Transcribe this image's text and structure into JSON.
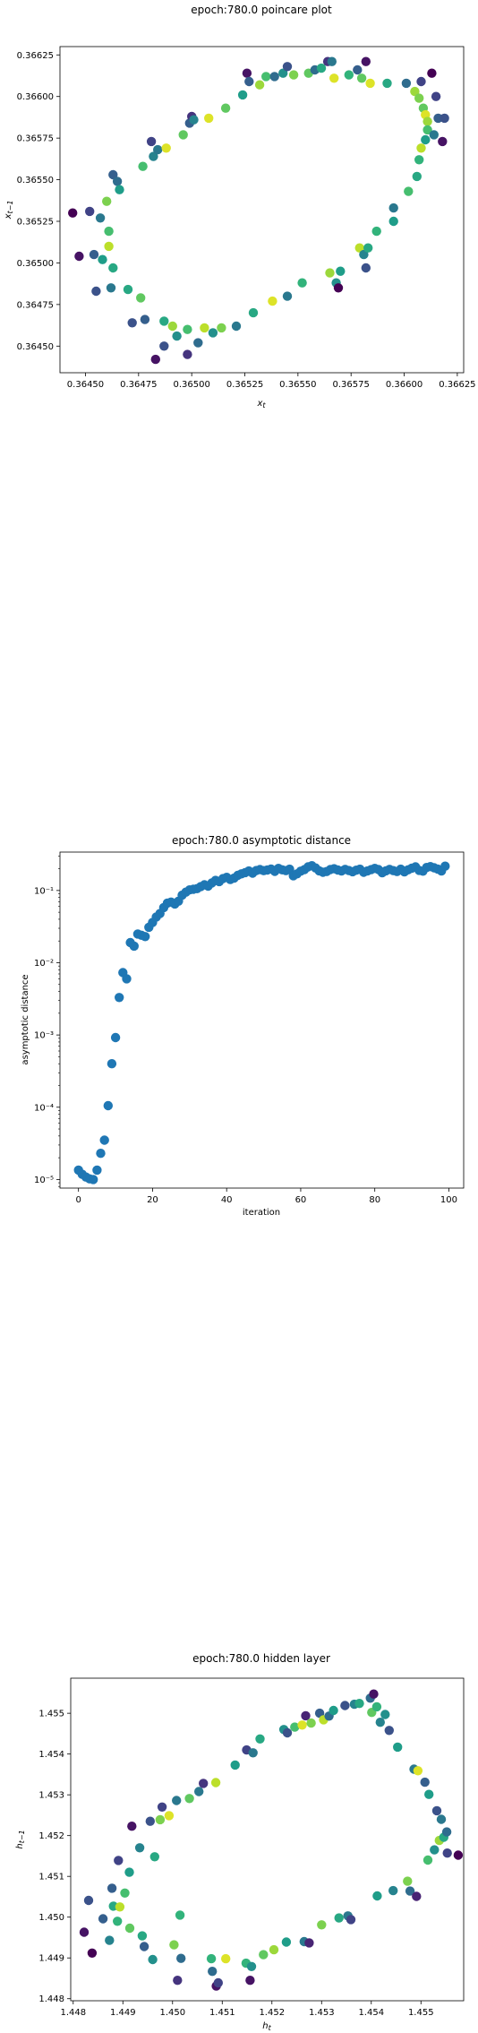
{
  "chart_data": [
    {
      "type": "scatter",
      "title": "epoch:780.0 poincare plot",
      "xlabel": "x_t",
      "ylabel": "x_{t-1}",
      "xlim": [
        0.36438,
        0.36628
      ],
      "ylim": [
        0.36434,
        0.3663
      ],
      "xticks": [
        0.3645,
        0.36475,
        0.365,
        0.36525,
        0.3655,
        0.36575,
        0.366,
        0.36625
      ],
      "xtick_labels": [
        "0.36450",
        "0.36475",
        "0.36500",
        "0.36525",
        "0.36550",
        "0.36575",
        "0.36600",
        "0.36625"
      ],
      "yticks": [
        0.3645,
        0.36475,
        0.365,
        0.36525,
        0.3655,
        0.36575,
        0.366,
        0.36625
      ],
      "ytick_labels": [
        "0.36450",
        "0.36475",
        "0.36500",
        "0.36525",
        "0.36550",
        "0.36575",
        "0.36600",
        "0.36625"
      ],
      "colormap": "viridis",
      "points": [
        [
          0.36444,
          0.3653,
          0.0
        ],
        [
          0.36447,
          0.36504,
          0.05
        ],
        [
          0.36452,
          0.36531,
          0.2
        ],
        [
          0.36454,
          0.36505,
          0.3
        ],
        [
          0.36455,
          0.36483,
          0.25
        ],
        [
          0.36457,
          0.36527,
          0.4
        ],
        [
          0.36458,
          0.36502,
          0.55
        ],
        [
          0.3646,
          0.36537,
          0.8
        ],
        [
          0.36461,
          0.36519,
          0.7
        ],
        [
          0.36461,
          0.3651,
          0.9
        ],
        [
          0.36462,
          0.36485,
          0.4
        ],
        [
          0.36463,
          0.36553,
          0.3
        ],
        [
          0.36463,
          0.36497,
          0.6
        ],
        [
          0.36465,
          0.36549,
          0.35
        ],
        [
          0.36466,
          0.36544,
          0.55
        ],
        [
          0.3647,
          0.36484,
          0.6
        ],
        [
          0.36472,
          0.36464,
          0.25
        ],
        [
          0.36476,
          0.36479,
          0.75
        ],
        [
          0.36477,
          0.36558,
          0.7
        ],
        [
          0.36478,
          0.36466,
          0.3
        ],
        [
          0.36481,
          0.36573,
          0.2
        ],
        [
          0.36482,
          0.36564,
          0.45
        ],
        [
          0.36483,
          0.36442,
          0.05
        ],
        [
          0.36484,
          0.36568,
          0.4
        ],
        [
          0.36487,
          0.3645,
          0.25
        ],
        [
          0.36487,
          0.36465,
          0.6
        ],
        [
          0.36488,
          0.36569,
          0.95
        ],
        [
          0.36491,
          0.36462,
          0.85
        ],
        [
          0.36493,
          0.36456,
          0.5
        ],
        [
          0.36496,
          0.36577,
          0.75
        ],
        [
          0.36498,
          0.3646,
          0.7
        ],
        [
          0.36498,
          0.36445,
          0.15
        ],
        [
          0.36499,
          0.36584,
          0.3
        ],
        [
          0.365,
          0.36588,
          0.15
        ],
        [
          0.36501,
          0.36586,
          0.45
        ],
        [
          0.36503,
          0.36452,
          0.35
        ],
        [
          0.36506,
          0.36461,
          0.9
        ],
        [
          0.36508,
          0.36587,
          0.95
        ],
        [
          0.3651,
          0.36458,
          0.5
        ],
        [
          0.36514,
          0.36461,
          0.8
        ],
        [
          0.36516,
          0.36593,
          0.75
        ],
        [
          0.36521,
          0.36462,
          0.4
        ],
        [
          0.36524,
          0.36601,
          0.55
        ],
        [
          0.36526,
          0.36614,
          0.05
        ],
        [
          0.36527,
          0.36609,
          0.3
        ],
        [
          0.36529,
          0.3647,
          0.6
        ],
        [
          0.36532,
          0.36607,
          0.85
        ],
        [
          0.36535,
          0.36612,
          0.7
        ],
        [
          0.36538,
          0.36477,
          0.95
        ],
        [
          0.36539,
          0.36612,
          0.35
        ],
        [
          0.36543,
          0.36614,
          0.5
        ],
        [
          0.36545,
          0.36618,
          0.25
        ],
        [
          0.36545,
          0.3648,
          0.4
        ],
        [
          0.36548,
          0.36613,
          0.8
        ],
        [
          0.36552,
          0.36488,
          0.65
        ],
        [
          0.36555,
          0.36614,
          0.75
        ],
        [
          0.36558,
          0.36616,
          0.35
        ],
        [
          0.36561,
          0.36617,
          0.6
        ],
        [
          0.36564,
          0.36621,
          0.15
        ],
        [
          0.36565,
          0.36494,
          0.85
        ],
        [
          0.36566,
          0.36621,
          0.4
        ],
        [
          0.36567,
          0.36611,
          0.95
        ],
        [
          0.36568,
          0.36488,
          0.5
        ],
        [
          0.36569,
          0.36485,
          0.0
        ],
        [
          0.3657,
          0.36495,
          0.55
        ],
        [
          0.36574,
          0.36613,
          0.65
        ],
        [
          0.36578,
          0.36616,
          0.3
        ],
        [
          0.36579,
          0.36509,
          0.9
        ],
        [
          0.3658,
          0.36611,
          0.75
        ],
        [
          0.36581,
          0.36505,
          0.45
        ],
        [
          0.36582,
          0.36497,
          0.25
        ],
        [
          0.36582,
          0.36621,
          0.05
        ],
        [
          0.36583,
          0.36509,
          0.6
        ],
        [
          0.36584,
          0.36608,
          0.95
        ],
        [
          0.36587,
          0.36519,
          0.65
        ],
        [
          0.36592,
          0.36608,
          0.6
        ],
        [
          0.36595,
          0.36525,
          0.55
        ],
        [
          0.36595,
          0.36533,
          0.4
        ],
        [
          0.36601,
          0.36608,
          0.35
        ],
        [
          0.36602,
          0.36543,
          0.7
        ],
        [
          0.36605,
          0.36603,
          0.85
        ],
        [
          0.36606,
          0.36552,
          0.6
        ],
        [
          0.36607,
          0.36562,
          0.65
        ],
        [
          0.36607,
          0.36599,
          0.8
        ],
        [
          0.36608,
          0.36609,
          0.2
        ],
        [
          0.36608,
          0.36569,
          0.9
        ],
        [
          0.36609,
          0.36593,
          0.75
        ],
        [
          0.3661,
          0.36574,
          0.55
        ],
        [
          0.3661,
          0.36589,
          0.95
        ],
        [
          0.36611,
          0.36585,
          0.85
        ],
        [
          0.36611,
          0.3658,
          0.7
        ],
        [
          0.36613,
          0.36614,
          0.0
        ],
        [
          0.36614,
          0.36577,
          0.4
        ],
        [
          0.36615,
          0.366,
          0.2
        ],
        [
          0.36616,
          0.36587,
          0.3
        ],
        [
          0.36618,
          0.36573,
          0.05
        ],
        [
          0.36619,
          0.36587,
          0.25
        ]
      ]
    },
    {
      "type": "scatter",
      "title": "epoch:780.0 asymptotic distance",
      "xlabel": "iteration",
      "ylabel": "asymptotic distance",
      "yscale": "log",
      "xlim": [
        -5,
        104
      ],
      "ylim": [
        7.6e-06,
        0.34
      ],
      "xticks": [
        0,
        20,
        40,
        60,
        80,
        100
      ],
      "xtick_labels": [
        "0",
        "20",
        "40",
        "60",
        "80",
        "100"
      ],
      "yticks": [
        1e-05,
        0.0001,
        0.001,
        0.01,
        0.1
      ],
      "ytick_labels": [
        "10⁻⁵",
        "10⁻⁴",
        "10⁻³",
        "10⁻²",
        "10⁻¹"
      ],
      "color": "#1f77b4",
      "x": [
        0,
        1,
        2,
        3,
        4,
        5,
        6,
        7,
        8,
        9,
        10,
        11,
        12,
        13,
        14,
        15,
        16,
        17,
        18,
        19,
        20,
        21,
        22,
        23,
        24,
        25,
        26,
        27,
        28,
        29,
        30,
        31,
        32,
        33,
        34,
        35,
        36,
        37,
        38,
        39,
        40,
        41,
        42,
        43,
        44,
        45,
        46,
        47,
        48,
        49,
        50,
        51,
        52,
        53,
        54,
        55,
        56,
        57,
        58,
        59,
        60,
        61,
        62,
        63,
        64,
        65,
        66,
        67,
        68,
        69,
        70,
        71,
        72,
        73,
        74,
        75,
        76,
        77,
        78,
        79,
        80,
        81,
        82,
        83,
        84,
        85,
        86,
        87,
        88,
        89,
        90,
        91,
        92,
        93,
        94,
        95,
        96,
        97,
        98,
        99
      ],
      "y": [
        1.35e-05,
        1.18e-05,
        1.08e-05,
        1.02e-05,
        1e-05,
        1.35e-05,
        2.3e-05,
        3.5e-05,
        0.000105,
        0.0004,
        0.00092,
        0.0033,
        0.0073,
        0.006,
        0.019,
        0.017,
        0.025,
        0.024,
        0.023,
        0.031,
        0.036,
        0.043,
        0.048,
        0.058,
        0.067,
        0.069,
        0.065,
        0.071,
        0.086,
        0.095,
        0.102,
        0.104,
        0.106,
        0.113,
        0.12,
        0.115,
        0.127,
        0.138,
        0.133,
        0.146,
        0.152,
        0.142,
        0.148,
        0.162,
        0.17,
        0.177,
        0.186,
        0.174,
        0.189,
        0.195,
        0.188,
        0.192,
        0.198,
        0.184,
        0.202,
        0.193,
        0.188,
        0.197,
        0.16,
        0.17,
        0.185,
        0.194,
        0.212,
        0.22,
        0.205,
        0.187,
        0.179,
        0.183,
        0.195,
        0.2,
        0.192,
        0.186,
        0.196,
        0.189,
        0.182,
        0.191,
        0.197,
        0.179,
        0.186,
        0.194,
        0.202,
        0.195,
        0.176,
        0.187,
        0.196,
        0.188,
        0.183,
        0.197,
        0.181,
        0.193,
        0.204,
        0.212,
        0.19,
        0.185,
        0.208,
        0.214,
        0.206,
        0.198,
        0.186,
        0.217
      ]
    },
    {
      "type": "scatter",
      "title": "epoch:780.0 hidden layer",
      "xlabel": "h_t",
      "ylabel": "h_{t-1}",
      "xlim": [
        1.44795,
        1.45586
      ],
      "ylim": [
        1.44795,
        1.45586
      ],
      "xticks": [
        1.448,
        1.449,
        1.45,
        1.451,
        1.452,
        1.453,
        1.454,
        1.455
      ],
      "xtick_labels": [
        "1.448",
        "1.449",
        "1.450",
        "1.451",
        "1.452",
        "1.453",
        "1.454",
        "1.455"
      ],
      "yticks": [
        1.448,
        1.449,
        1.45,
        1.451,
        1.452,
        1.453,
        1.454,
        1.455
      ],
      "ytick_labels": [
        "1.448",
        "1.449",
        "1.450",
        "1.451",
        "1.452",
        "1.453",
        "1.454",
        "1.455"
      ],
      "colormap": "viridis",
      "points": [
        [
          1.44822,
          1.44963,
          0.05
        ],
        [
          1.44831,
          1.45041,
          0.25
        ],
        [
          1.44838,
          1.44912,
          0.0
        ],
        [
          1.4486,
          1.44996,
          0.3
        ],
        [
          1.44873,
          1.44943,
          0.45
        ],
        [
          1.44878,
          1.45071,
          0.3
        ],
        [
          1.44881,
          1.45027,
          0.6
        ],
        [
          1.44889,
          1.4499,
          0.65
        ],
        [
          1.44891,
          1.45139,
          0.2
        ],
        [
          1.44894,
          1.45025,
          0.9
        ],
        [
          1.44904,
          1.45059,
          0.7
        ],
        [
          1.44913,
          1.4511,
          0.55
        ],
        [
          1.44914,
          1.44973,
          0.75
        ],
        [
          1.44918,
          1.45223,
          0.05
        ],
        [
          1.44934,
          1.4517,
          0.45
        ],
        [
          1.44939,
          1.44954,
          0.6
        ],
        [
          1.44943,
          1.44928,
          0.3
        ],
        [
          1.44955,
          1.45235,
          0.25
        ],
        [
          1.4496,
          1.44896,
          0.5
        ],
        [
          1.44964,
          1.45148,
          0.6
        ],
        [
          1.44975,
          1.45239,
          0.8
        ],
        [
          1.44979,
          1.4527,
          0.2
        ],
        [
          1.44993,
          1.45249,
          0.95
        ],
        [
          1.45003,
          1.44932,
          0.8
        ],
        [
          1.45008,
          1.45286,
          0.4
        ],
        [
          1.4501,
          1.44845,
          0.15
        ],
        [
          1.45015,
          1.45005,
          0.65
        ],
        [
          1.45017,
          1.44899,
          0.35
        ],
        [
          1.45034,
          1.45291,
          0.75
        ],
        [
          1.45053,
          1.45308,
          0.4
        ],
        [
          1.45062,
          1.45328,
          0.15
        ],
        [
          1.45078,
          1.44898,
          0.65
        ],
        [
          1.4508,
          1.44867,
          0.35
        ],
        [
          1.45087,
          1.4533,
          0.9
        ],
        [
          1.45088,
          1.44831,
          0.05
        ],
        [
          1.45092,
          1.44839,
          0.2
        ],
        [
          1.45107,
          1.44898,
          0.95
        ],
        [
          1.45126,
          1.45373,
          0.55
        ],
        [
          1.45148,
          1.44887,
          0.65
        ],
        [
          1.45149,
          1.4541,
          0.2
        ],
        [
          1.45156,
          1.44845,
          0.05
        ],
        [
          1.45159,
          1.44879,
          0.5
        ],
        [
          1.45162,
          1.45403,
          0.4
        ],
        [
          1.45176,
          1.45437,
          0.6
        ],
        [
          1.45183,
          1.44908,
          0.75
        ],
        [
          1.45204,
          1.4492,
          0.85
        ],
        [
          1.45224,
          1.4546,
          0.5
        ],
        [
          1.45229,
          1.44939,
          0.55
        ],
        [
          1.45231,
          1.45452,
          0.25
        ],
        [
          1.45246,
          1.45466,
          0.7
        ],
        [
          1.45261,
          1.45471,
          0.95
        ],
        [
          1.45265,
          1.4494,
          0.4
        ],
        [
          1.45268,
          1.45494,
          0.1
        ],
        [
          1.45275,
          1.44937,
          0.1
        ],
        [
          1.45279,
          1.45476,
          0.8
        ],
        [
          1.45296,
          1.455,
          0.3
        ],
        [
          1.453,
          1.44981,
          0.8
        ],
        [
          1.45304,
          1.45484,
          0.9
        ],
        [
          1.45315,
          1.45493,
          0.35
        ],
        [
          1.45324,
          1.45507,
          0.55
        ],
        [
          1.45335,
          1.44998,
          0.6
        ],
        [
          1.45347,
          1.45519,
          0.25
        ],
        [
          1.45353,
          1.45003,
          0.4
        ],
        [
          1.45359,
          1.44994,
          0.2
        ],
        [
          1.45366,
          1.45522,
          0.45
        ],
        [
          1.45376,
          1.45524,
          0.6
        ],
        [
          1.45398,
          1.45537,
          0.35
        ],
        [
          1.45401,
          1.45502,
          0.75
        ],
        [
          1.45405,
          1.45547,
          0.05
        ],
        [
          1.45411,
          1.45516,
          0.65
        ],
        [
          1.45412,
          1.45052,
          0.55
        ],
        [
          1.45418,
          1.45478,
          0.45
        ],
        [
          1.45428,
          1.45497,
          0.5
        ],
        [
          1.45436,
          1.45458,
          0.25
        ],
        [
          1.45444,
          1.45065,
          0.45
        ],
        [
          1.45453,
          1.45417,
          0.55
        ],
        [
          1.45473,
          1.45088,
          0.8
        ],
        [
          1.45478,
          1.45064,
          0.35
        ],
        [
          1.45486,
          1.45363,
          0.4
        ],
        [
          1.45491,
          1.45051,
          0.1
        ],
        [
          1.45494,
          1.45359,
          0.95
        ],
        [
          1.45508,
          1.45331,
          0.3
        ],
        [
          1.45514,
          1.4514,
          0.7
        ],
        [
          1.45516,
          1.45301,
          0.55
        ],
        [
          1.45527,
          1.45165,
          0.5
        ],
        [
          1.45532,
          1.45261,
          0.25
        ],
        [
          1.45537,
          1.45188,
          0.85
        ],
        [
          1.45541,
          1.4524,
          0.4
        ],
        [
          1.45546,
          1.45196,
          0.6
        ],
        [
          1.45552,
          1.45209,
          0.35
        ],
        [
          1.45553,
          1.45157,
          0.2
        ],
        [
          1.45575,
          1.45152,
          0.0
        ]
      ]
    }
  ]
}
